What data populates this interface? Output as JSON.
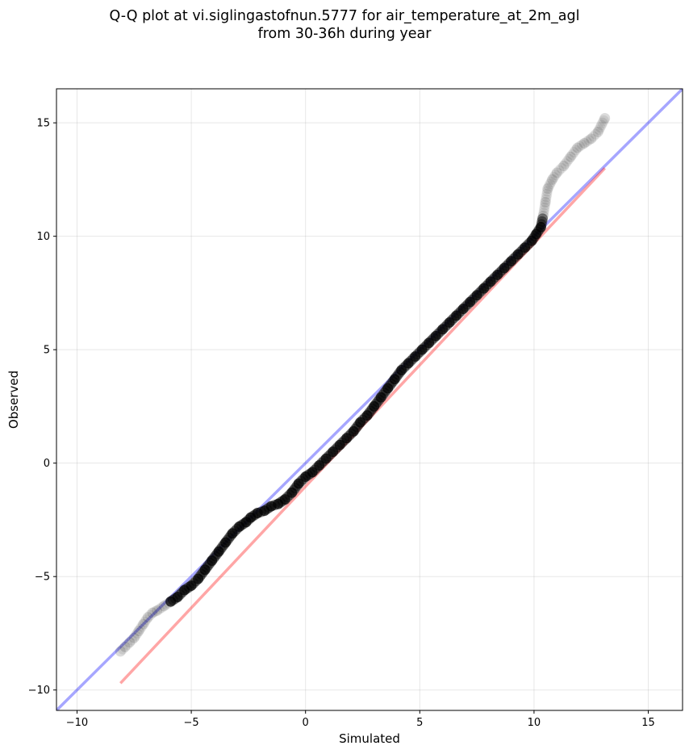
{
  "chart_data": {
    "type": "scatter",
    "title_line1": "Q-Q plot at vi.siglingastofnun.5777 for air_temperature_at_2m_agl",
    "title_line2": "from 30-36h during year",
    "xlabel": "Simulated",
    "ylabel": "Observed",
    "xlim": [
      -10.9,
      16.5
    ],
    "ylim": [
      -10.9,
      16.5
    ],
    "xticks": [
      -10,
      -5,
      0,
      5,
      10,
      15
    ],
    "yticks": [
      -10,
      -5,
      0,
      5,
      10,
      15
    ],
    "xtick_labels": [
      "−10",
      "−5",
      "0",
      "5",
      "10",
      "15"
    ],
    "ytick_labels": [
      "−10",
      "−5",
      "0",
      "5",
      "10",
      "15"
    ],
    "grid": true,
    "colors": {
      "identity_line": "#0000ff",
      "fit_line": "#ff0000",
      "points": "#000000"
    },
    "identity_line": {
      "x": [
        -10.9,
        16.5
      ],
      "y": [
        -10.9,
        16.5
      ]
    },
    "fit_line": {
      "x": [
        -8.1,
        13.1
      ],
      "y": [
        -9.7,
        13.0
      ]
    },
    "quantiles": {
      "x": [
        -8.1,
        -7.9,
        -7.7,
        -7.5,
        -7.3,
        -7.1,
        -6.9,
        -6.7,
        -6.5,
        -6.2,
        -5.9,
        -5.6,
        -5.3,
        -5.0,
        -4.7,
        -4.4,
        -4.1,
        -3.8,
        -3.5,
        -3.2,
        -2.9,
        -2.6,
        -2.4,
        -2.1,
        -1.8,
        -1.5,
        -1.2,
        -0.9,
        -0.6,
        -0.3,
        0.0,
        0.3,
        0.6,
        0.9,
        1.2,
        1.5,
        1.8,
        2.1,
        2.4,
        2.7,
        3.0,
        3.3,
        3.6,
        3.9,
        4.2,
        4.5,
        4.8,
        5.1,
        5.4,
        5.7,
        6.0,
        6.3,
        6.6,
        6.9,
        7.2,
        7.5,
        7.8,
        8.1,
        8.4,
        8.7,
        9.0,
        9.3,
        9.6,
        9.9,
        10.1,
        10.3,
        10.4,
        10.5,
        10.6,
        10.8,
        11.0,
        11.3,
        11.6,
        11.9,
        12.2,
        12.5,
        12.8,
        13.1
      ],
      "y": [
        -8.3,
        -8.1,
        -7.9,
        -7.7,
        -7.4,
        -7.1,
        -6.8,
        -6.6,
        -6.5,
        -6.3,
        -6.1,
        -5.9,
        -5.6,
        -5.4,
        -5.1,
        -4.7,
        -4.3,
        -3.9,
        -3.5,
        -3.1,
        -2.8,
        -2.6,
        -2.4,
        -2.2,
        -2.1,
        -1.9,
        -1.8,
        -1.6,
        -1.3,
        -0.9,
        -0.6,
        -0.4,
        -0.1,
        0.2,
        0.5,
        0.8,
        1.1,
        1.4,
        1.8,
        2.1,
        2.5,
        2.9,
        3.3,
        3.7,
        4.1,
        4.4,
        4.7,
        5.0,
        5.3,
        5.6,
        5.9,
        6.2,
        6.5,
        6.8,
        7.1,
        7.4,
        7.7,
        8.0,
        8.3,
        8.6,
        8.9,
        9.2,
        9.5,
        9.8,
        10.1,
        10.4,
        10.9,
        11.5,
        12.1,
        12.5,
        12.8,
        13.1,
        13.5,
        13.9,
        14.1,
        14.3,
        14.6,
        15.2
      ]
    }
  }
}
